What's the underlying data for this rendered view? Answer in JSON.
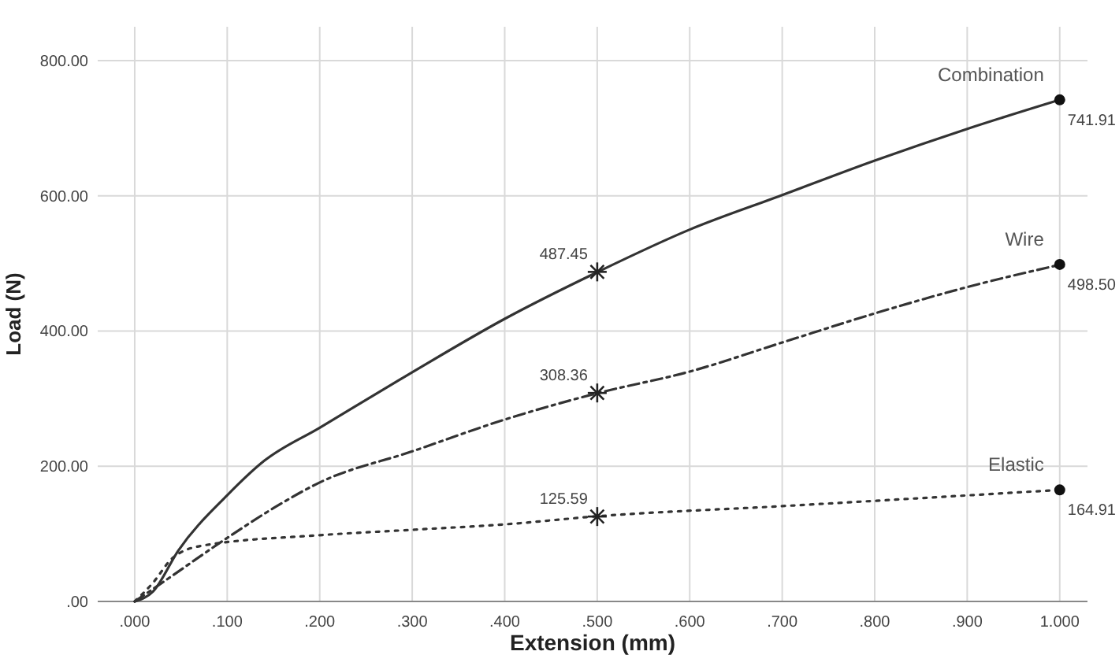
{
  "chart_data": {
    "type": "line",
    "xlabel": "Extension (mm)",
    "ylabel": "Load (N)",
    "xlim": [
      -0.04,
      1.03
    ],
    "ylim": [
      0,
      850
    ],
    "xticks": [
      {
        "value": 0,
        "label": ".000"
      },
      {
        "value": 0.1,
        "label": ".100"
      },
      {
        "value": 0.2,
        "label": ".200"
      },
      {
        "value": 0.3,
        "label": ".300"
      },
      {
        "value": 0.4,
        "label": ".400"
      },
      {
        "value": 0.5,
        "label": ".500"
      },
      {
        "value": 0.6,
        "label": ".600"
      },
      {
        "value": 0.7,
        "label": ".700"
      },
      {
        "value": 0.8,
        "label": ".800"
      },
      {
        "value": 0.9,
        "label": ".900"
      },
      {
        "value": 1,
        "label": "1.000"
      }
    ],
    "yticks": [
      {
        "value": 0,
        "label": ".00"
      },
      {
        "value": 200,
        "label": "200.00"
      },
      {
        "value": 400,
        "label": "400.00"
      },
      {
        "value": 600,
        "label": "600.00"
      },
      {
        "value": 800,
        "label": "800.00"
      }
    ],
    "grid": true,
    "series": [
      {
        "name": "Combination",
        "color": "#333333",
        "line_style": "solid",
        "marker": "none",
        "x": [
          0,
          0.02,
          0.047,
          0.1,
          0.14,
          0.2,
          0.3,
          0.4,
          0.5,
          0.6,
          0.7,
          0.8,
          0.9,
          1
        ],
        "values": [
          0,
          15,
          75,
          157,
          208,
          257,
          339,
          418,
          487,
          550,
          601,
          652,
          699,
          742
        ]
      },
      {
        "name": "Wire",
        "color": "#333333",
        "line_style": "dashed",
        "marker": "none",
        "x": [
          0,
          0.03,
          0.1,
          0.15,
          0.2,
          0.3,
          0.4,
          0.5,
          0.6,
          0.7,
          0.8,
          0.9,
          1
        ],
        "values": [
          0,
          28,
          94,
          138,
          176,
          222,
          269,
          308,
          340,
          383,
          426,
          465,
          498
        ]
      },
      {
        "name": "Elastic",
        "color": "#333333",
        "line_style": "dotted",
        "marker": "none",
        "x": [
          0,
          0.02,
          0.04,
          0.071,
          0.2,
          0.3,
          0.4,
          0.5,
          0.7,
          1
        ],
        "values": [
          0,
          28,
          63,
          82,
          98,
          106,
          114,
          126,
          141,
          165
        ]
      },
      {
        "type": "scatter",
        "color": "#222222",
        "marker": "cross",
        "x": [
          0.5,
          0.5,
          0.5
        ],
        "values": [
          487.45,
          308.36,
          125.59
        ],
        "value_labels": [
          "487.45",
          "308.36",
          "125.59"
        ]
      },
      {
        "type": "scatter",
        "color": "#111111",
        "marker": "circle",
        "x": [
          1,
          1,
          1
        ],
        "values": [
          741.91,
          498.5,
          164.91
        ],
        "value_labels": [
          "741.91",
          "498.50",
          "164.91"
        ]
      }
    ]
  }
}
